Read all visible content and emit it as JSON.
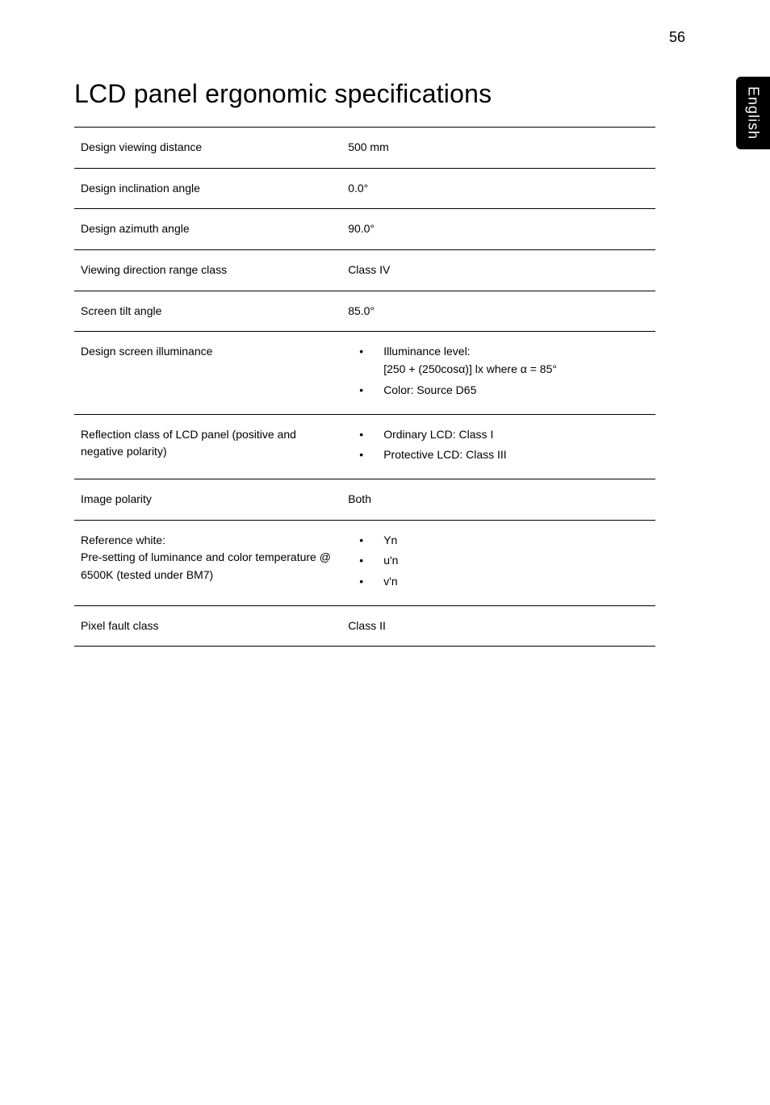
{
  "page_number": "56",
  "side_tab": "English",
  "title": "LCD panel ergonomic specifications",
  "rows": [
    {
      "label": "Design viewing distance",
      "value_type": "text",
      "value": "500 mm"
    },
    {
      "label": "Design inclination angle",
      "value_type": "text",
      "value": "0.0°"
    },
    {
      "label": "Design azimuth angle",
      "value_type": "text",
      "value": "90.0°"
    },
    {
      "label": "Viewing direction range class",
      "value_type": "text",
      "value": "Class IV"
    },
    {
      "label": "Screen tilt angle",
      "value_type": "text",
      "value": "85.0°"
    },
    {
      "label": "Design screen illuminance",
      "value_type": "bullets",
      "items": [
        "Illuminance level:\n[250 + (250cosα)] lx where α = 85°",
        "Color: Source D65"
      ]
    },
    {
      "label": "Reflection class of LCD panel (positive and negative polarity)",
      "value_type": "bullets",
      "items": [
        "Ordinary LCD: Class I",
        "Protective LCD: Class III"
      ]
    },
    {
      "label": "Image polarity",
      "value_type": "text",
      "value": "Both"
    },
    {
      "label": "Reference white:\nPre-setting of luminance and color temperature @ 6500K (tested under BM7)",
      "value_type": "bullets",
      "items": [
        "Yn",
        "u'n",
        "v'n"
      ]
    },
    {
      "label": "Pixel fault class",
      "value_type": "text",
      "value": "Class II"
    }
  ]
}
